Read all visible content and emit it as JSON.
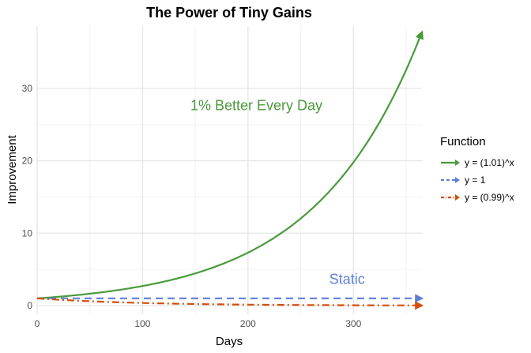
{
  "chart_data": {
    "type": "line",
    "title": "The Power of Tiny Gains",
    "xlabel": "Days",
    "ylabel": "Improvement",
    "xlim": [
      0,
      365
    ],
    "ylim": [
      -1.2,
      38.6
    ],
    "xticks": [
      0,
      100,
      200,
      300
    ],
    "yticks": [
      0,
      10,
      20,
      30
    ],
    "grid": true,
    "legend": {
      "title": "Function",
      "position": "right"
    },
    "series": [
      {
        "name": "y = (1.01)^x",
        "color": "#4a9a3c",
        "style": "solid",
        "function": "1.01^x",
        "x": [
          0,
          50,
          100,
          150,
          200,
          250,
          300,
          365
        ],
        "values": [
          1,
          1.64,
          2.7,
          4.45,
          7.32,
          12.03,
          19.79,
          37.78
        ]
      },
      {
        "name": "y = 1",
        "color": "#5f7fd6",
        "style": "dashed",
        "function": "1",
        "x": [
          0,
          365
        ],
        "values": [
          1,
          1
        ]
      },
      {
        "name": "y = (0.99)^x",
        "color": "#d34f0c",
        "style": "dashdot",
        "function": "0.99^x",
        "x": [
          0,
          50,
          100,
          150,
          200,
          250,
          300,
          365
        ],
        "values": [
          1,
          0.61,
          0.37,
          0.22,
          0.13,
          0.08,
          0.05,
          0.03
        ]
      }
    ],
    "annotations": [
      {
        "text": "1% Better Every Day",
        "x": 208,
        "y": 27,
        "color": "#4a9a3c"
      },
      {
        "text": "Static",
        "x": 294,
        "y": 3,
        "color": "#5f7fd6"
      }
    ]
  }
}
